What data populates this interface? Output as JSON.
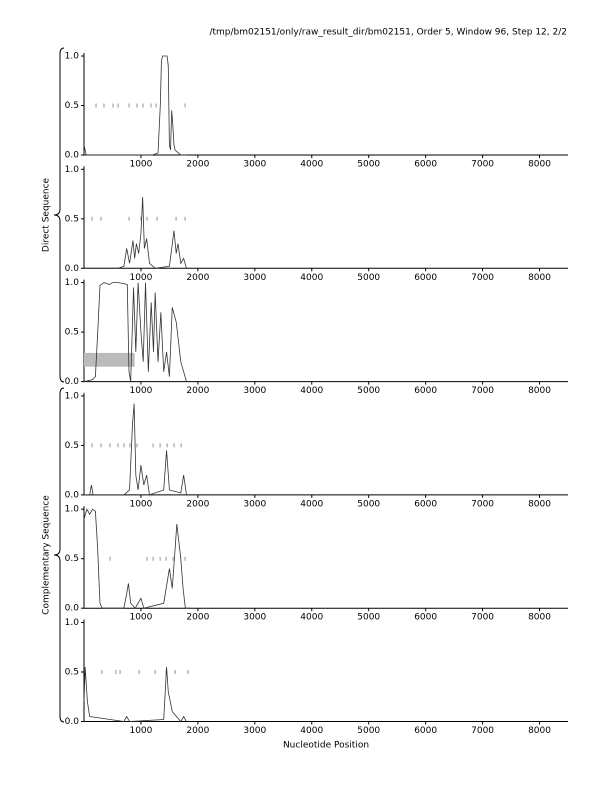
{
  "title": "/tmp/bm02151/only/raw_result_dir/bm02151, Order 5, Window 96, Step 12, 2/2",
  "x_label": "Nucleotide Position",
  "group_labels": [
    "Direct Sequence",
    "Complementary Sequence"
  ],
  "chart_data": [
    {
      "type": "line",
      "xlim": [
        0,
        8500
      ],
      "ylim": [
        0,
        1
      ],
      "xticks": [
        1000,
        2000,
        3000,
        4000,
        5000,
        6000,
        7000,
        8000
      ],
      "yticks": [
        {
          "value": 0,
          "label": "0.0"
        },
        {
          "value": 0.5,
          "label": "0.5"
        },
        {
          "value": 1,
          "label": "1.0"
        }
      ],
      "series": [
        {
          "color": "#333333",
          "x": [
            0,
            20,
            40,
            100,
            1200,
            1300,
            1340,
            1360,
            1380,
            1460,
            1480,
            1500,
            1520,
            1540,
            1560,
            1580,
            1600,
            1700,
            1800
          ],
          "values": [
            0.1,
            0.05,
            0,
            0,
            0,
            0.02,
            0.5,
            0.95,
            1.0,
            1.0,
            0.9,
            0.1,
            0.05,
            0.45,
            0.3,
            0.1,
            0.05,
            0,
            0
          ]
        }
      ],
      "markers_x": [
        211,
        351,
        510,
        598,
        791,
        931,
        1037,
        1177,
        1265,
        1775
      ],
      "marker_y": 0.5
    },
    {
      "type": "line",
      "xlim": [
        0,
        8500
      ],
      "ylim": [
        0,
        1
      ],
      "xticks": [
        1000,
        2000,
        3000,
        4000,
        5000,
        6000,
        7000,
        8000
      ],
      "yticks": [
        {
          "value": 0,
          "label": "0.0"
        },
        {
          "value": 0.5,
          "label": "0.5"
        },
        {
          "value": 1,
          "label": "1.0"
        }
      ],
      "series": [
        {
          "color": "#333333",
          "x": [
            0,
            600,
            700,
            750,
            800,
            860,
            890,
            920,
            960,
            1000,
            1030,
            1060,
            1100,
            1150,
            1250,
            1500,
            1580,
            1620,
            1650,
            1700,
            1750,
            1800
          ],
          "values": [
            0,
            0,
            0.02,
            0.2,
            0.05,
            0.28,
            0.1,
            0.25,
            0.15,
            0.35,
            0.72,
            0.2,
            0.3,
            0.05,
            0,
            0.02,
            0.38,
            0.15,
            0.25,
            0.05,
            0.1,
            0
          ]
        }
      ],
      "markers_x": [
        141,
        299,
        791,
        1002,
        1107,
        1283,
        1617,
        1775
      ],
      "marker_y": 0.5
    },
    {
      "type": "line",
      "xlim": [
        0,
        8500
      ],
      "ylim": [
        0,
        1
      ],
      "xticks": [
        1000,
        2000,
        3000,
        4000,
        5000,
        6000,
        7000,
        8000
      ],
      "yticks": [
        {
          "value": 0,
          "label": "0.0"
        },
        {
          "value": 0.5,
          "label": "0.5"
        },
        {
          "value": 1,
          "label": "1.0"
        }
      ],
      "series": [
        {
          "color": "#333333",
          "x": [
            0,
            150,
            200,
            250,
            280,
            350,
            450,
            500,
            600,
            700,
            760,
            790,
            820,
            870,
            910,
            950,
            1000,
            1040,
            1080,
            1130,
            1180,
            1220,
            1250,
            1300,
            1350,
            1400,
            1450,
            1500,
            1550,
            1620,
            1660,
            1700,
            1800
          ],
          "values": [
            0,
            0.02,
            0.05,
            0.6,
            0.97,
            1.0,
            0.98,
            1.0,
            1.0,
            0.99,
            0.98,
            0.1,
            0,
            0.95,
            0.3,
            1.0,
            0.5,
            0.2,
            1.0,
            0.1,
            0.8,
            0.3,
            0.9,
            0.2,
            0.7,
            0.1,
            0.3,
            0.05,
            0.75,
            0.6,
            0.4,
            0.2,
            0
          ]
        }
      ],
      "highlight": {
        "x": [
          0,
          890
        ],
        "y": [
          0.15,
          0.29
        ]
      }
    },
    {
      "type": "line",
      "xlim": [
        0,
        8500
      ],
      "ylim": [
        0,
        1
      ],
      "xticks": [
        1000,
        2000,
        3000,
        4000,
        5000,
        6000,
        7000,
        8000
      ],
      "yticks": [
        {
          "value": 0,
          "label": "0.0"
        },
        {
          "value": 0.5,
          "label": "0.5"
        },
        {
          "value": 1,
          "label": "1.0"
        }
      ],
      "series": [
        {
          "color": "#333333",
          "x": [
            0,
            100,
            130,
            160,
            700,
            800,
            850,
            880,
            910,
            950,
            1000,
            1050,
            1100,
            1150,
            1400,
            1450,
            1500,
            1700,
            1750,
            1800
          ],
          "values": [
            0,
            0,
            0.1,
            0,
            0,
            0.05,
            0.7,
            0.92,
            0.2,
            0.05,
            0.3,
            0.1,
            0.2,
            0,
            0.05,
            0.45,
            0.05,
            0.02,
            0.2,
            0
          ]
        }
      ],
      "markers_x": [
        141,
        299,
        457,
        598,
        703,
        808,
        931,
        1213,
        1336,
        1459,
        1582,
        1705
      ],
      "marker_y": 0.5
    },
    {
      "type": "line",
      "xlim": [
        0,
        8500
      ],
      "ylim": [
        0,
        1
      ],
      "xticks": [
        1000,
        2000,
        3000,
        4000,
        5000,
        6000,
        7000,
        8000
      ],
      "yticks": [
        {
          "value": 0,
          "label": "0.0"
        },
        {
          "value": 0.5,
          "label": "0.5"
        },
        {
          "value": 1,
          "label": "1.0"
        }
      ],
      "series": [
        {
          "color": "#333333",
          "x": [
            0,
            50,
            100,
            150,
            200,
            240,
            280,
            320,
            700,
            750,
            780,
            820,
            900,
            1000,
            1050,
            1400,
            1500,
            1550,
            1600,
            1630,
            1660,
            1700,
            1740,
            1780,
            1850
          ],
          "values": [
            0.9,
            1.0,
            0.95,
            1.0,
            0.98,
            0.6,
            0.05,
            0,
            0,
            0.15,
            0.25,
            0.05,
            0,
            0.1,
            0,
            0.05,
            0.4,
            0.2,
            0.6,
            0.85,
            0.7,
            0.5,
            0.2,
            0,
            0
          ]
        }
      ],
      "markers_x": [
        457,
        1107,
        1213,
        1336,
        1441,
        1564,
        1775
      ],
      "marker_y": 0.5
    },
    {
      "type": "line",
      "xlim": [
        0,
        8500
      ],
      "ylim": [
        0,
        1
      ],
      "xticks": [
        1000,
        2000,
        3000,
        4000,
        5000,
        6000,
        7000,
        8000
      ],
      "yticks": [
        {
          "value": 0,
          "label": "0.0"
        },
        {
          "value": 0.5,
          "label": "0.5"
        },
        {
          "value": 1,
          "label": "1.0"
        }
      ],
      "series": [
        {
          "color": "#333333",
          "x": [
            0,
            20,
            60,
            100,
            700,
            750,
            800,
            1400,
            1450,
            1480,
            1550,
            1700,
            1750,
            1800
          ],
          "values": [
            0.2,
            0.55,
            0.2,
            0.05,
            0,
            0.05,
            0,
            0.02,
            0.55,
            0.3,
            0.1,
            0,
            0.05,
            0
          ]
        }
      ],
      "markers_x": [
        316,
        562,
        633,
        967,
        1248,
        1441,
        1599,
        1828
      ],
      "marker_y": 0.5
    }
  ]
}
